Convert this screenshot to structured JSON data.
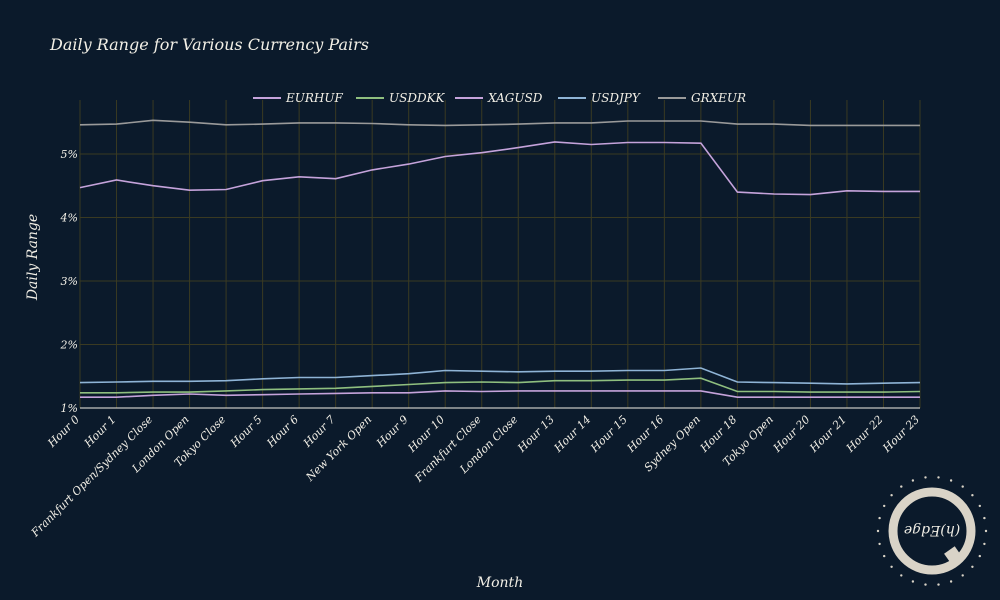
{
  "chart_data": {
    "type": "line",
    "title": "Daily Range for Various Currency Pairs",
    "xlabel": "Month",
    "ylabel": "Daily Range",
    "categories": [
      "Hour 0",
      "Hour 1",
      "Frankfurt Open/Sydney Close",
      "London Open",
      "Tokyo Close",
      "Hour 5",
      "Hour 6",
      "Hour 7",
      "New York Open",
      "Hour 9",
      "Hour 10",
      "Frankfurt Close",
      "London Close",
      "Hour 13",
      "Hour 14",
      "Hour 15",
      "Hour 16",
      "Sydney Open",
      "Hour 18",
      "Tokyo Open",
      "Hour 20",
      "Hour 21",
      "Hour 22",
      "Hour 23"
    ],
    "yticks": [
      1,
      2,
      3,
      4,
      5
    ],
    "ytick_labels": [
      "1%",
      "2%",
      "3%",
      "4%",
      "5%"
    ],
    "ylim": [
      1,
      5.85
    ],
    "grid": true,
    "legend_position": "top-center",
    "series": [
      {
        "name": "EURHUF",
        "color": "#c5a3db",
        "values": [
          1.17,
          1.17,
          1.2,
          1.22,
          1.2,
          1.21,
          1.22,
          1.23,
          1.24,
          1.24,
          1.27,
          1.26,
          1.27,
          1.27,
          1.27,
          1.27,
          1.27,
          1.27,
          1.17,
          1.17,
          1.17,
          1.17,
          1.17,
          1.17
        ]
      },
      {
        "name": "USDDKK",
        "color": "#8fbf7f",
        "values": [
          1.24,
          1.24,
          1.25,
          1.25,
          1.27,
          1.29,
          1.3,
          1.31,
          1.34,
          1.37,
          1.4,
          1.41,
          1.4,
          1.43,
          1.43,
          1.44,
          1.44,
          1.47,
          1.26,
          1.26,
          1.25,
          1.25,
          1.25,
          1.26
        ]
      },
      {
        "name": "XAGUSD",
        "color": "#c5a3db",
        "values": [
          4.47,
          4.59,
          4.5,
          4.43,
          4.44,
          4.58,
          4.64,
          4.61,
          4.75,
          4.84,
          4.96,
          5.02,
          5.1,
          5.19,
          5.15,
          5.18,
          5.18,
          5.17,
          4.4,
          4.37,
          4.36,
          4.42,
          4.41,
          4.41
        ]
      },
      {
        "name": "USDJPY",
        "color": "#8fb4d6",
        "values": [
          1.4,
          1.41,
          1.42,
          1.42,
          1.43,
          1.46,
          1.48,
          1.48,
          1.51,
          1.54,
          1.59,
          1.58,
          1.57,
          1.58,
          1.58,
          1.59,
          1.59,
          1.63,
          1.41,
          1.4,
          1.39,
          1.38,
          1.39,
          1.4
        ]
      },
      {
        "name": "GRXEUR",
        "color": "#9a9a9a",
        "values": [
          5.46,
          5.47,
          5.53,
          5.5,
          5.46,
          5.47,
          5.49,
          5.49,
          5.48,
          5.46,
          5.45,
          5.46,
          5.47,
          5.49,
          5.49,
          5.52,
          5.52,
          5.52,
          5.47,
          5.47,
          5.45,
          5.45,
          5.45,
          5.45
        ]
      }
    ]
  },
  "logo": {
    "text": "(h)Edge"
  }
}
